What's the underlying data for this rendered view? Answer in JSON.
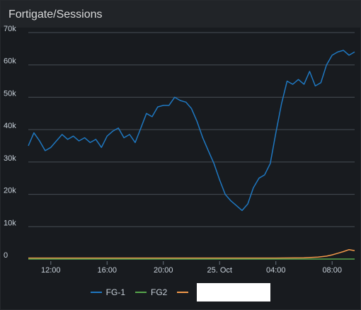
{
  "panel": {
    "title": "Fortigate/Sessions"
  },
  "chart_data": {
    "type": "line",
    "title": "Fortigate/Sessions",
    "xlabel": "",
    "ylabel": "",
    "x_ticks": [
      "12:00",
      "16:00",
      "20:00",
      "25. Oct",
      "04:00",
      "08:00"
    ],
    "y_ticks": [
      "0",
      "10k",
      "20k",
      "30k",
      "40k",
      "50k",
      "60k",
      "70k"
    ],
    "ylim": [
      0,
      70000
    ],
    "x_unit": "hours since 10:00 on 24 Oct",
    "xlim": [
      10.4,
      33.6
    ],
    "grid": true,
    "legend_position": "bottom",
    "series": [
      {
        "name": "FG-1",
        "color": "#1f78c1",
        "x": [
          10.4,
          10.8,
          11.2,
          11.6,
          12.0,
          12.4,
          12.8,
          13.2,
          13.6,
          14.0,
          14.4,
          14.8,
          15.2,
          15.6,
          16.0,
          16.4,
          16.8,
          17.2,
          17.6,
          18.0,
          18.4,
          18.8,
          19.2,
          19.6,
          20.0,
          20.4,
          20.8,
          21.2,
          21.6,
          22.0,
          22.4,
          22.8,
          23.2,
          23.6,
          24.0,
          24.4,
          24.8,
          25.2,
          25.6,
          26.0,
          26.4,
          26.8,
          27.2,
          27.6,
          28.0,
          28.4,
          28.8,
          29.2,
          29.6,
          30.0,
          30.4,
          30.8,
          31.2,
          31.6,
          32.0,
          32.4,
          32.8,
          33.2,
          33.6
        ],
        "y": [
          35000,
          39000,
          36500,
          33500,
          34500,
          36500,
          38500,
          37000,
          38000,
          36500,
          37500,
          36000,
          37000,
          34500,
          38000,
          39500,
          40500,
          37500,
          38500,
          36000,
          40500,
          45000,
          44000,
          47000,
          47500,
          47500,
          50000,
          49000,
          48500,
          46500,
          42500,
          37500,
          33500,
          29500,
          24500,
          20000,
          18000,
          16500,
          15000,
          17000,
          22000,
          25000,
          26000,
          29500,
          39000,
          48000,
          55000,
          54000,
          55500,
          54000,
          58000,
          53500,
          54500,
          60000,
          63000,
          64000,
          64500,
          63000,
          64000
        ]
      },
      {
        "name": "FG2",
        "color": "#56a64b",
        "x": [
          10.4,
          33.6
        ],
        "y": [
          0,
          0
        ]
      },
      {
        "name": "",
        "color": "#f2994a",
        "x": [
          10.4,
          12.0,
          14.0,
          16.0,
          18.0,
          20.0,
          22.0,
          24.0,
          26.0,
          28.0,
          30.0,
          31.0,
          31.6,
          32.0,
          32.4,
          32.8,
          33.2,
          33.6
        ],
        "y": [
          300,
          300,
          300,
          300,
          300,
          300,
          300,
          300,
          300,
          300,
          400,
          600,
          900,
          1300,
          1800,
          2300,
          2900,
          2600
        ]
      }
    ]
  },
  "legend": {
    "items": [
      {
        "label": "FG-1",
        "color": "#1f78c1"
      },
      {
        "label": "FG2",
        "color": "#56a64b"
      },
      {
        "label": "",
        "color": "#f2994a"
      }
    ]
  }
}
